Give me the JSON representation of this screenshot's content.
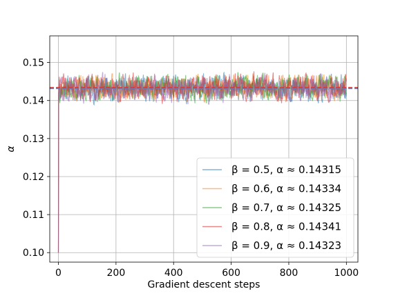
{
  "chart_data": {
    "type": "line",
    "xlabel": "Gradient descent steps",
    "ylabel": "α",
    "xlim": [
      -30,
      1040
    ],
    "ylim": [
      0.0975,
      0.157
    ],
    "x_ticks": [
      0,
      200,
      400,
      600,
      800,
      1000
    ],
    "x_tick_labels": [
      "0",
      "200",
      "400",
      "600",
      "800",
      "1000"
    ],
    "y_ticks": [
      0.1,
      0.11,
      0.12,
      0.13,
      0.14,
      0.15
    ],
    "y_tick_labels": [
      "0.10",
      "0.11",
      "0.12",
      "0.13",
      "0.14",
      "0.15"
    ],
    "grid": true,
    "legend_position": "lower-right",
    "steps": 1000,
    "initial_value": 0.1,
    "noise_amplitude": 0.003,
    "reference_lines": [
      {
        "value": 0.1432,
        "style": "dashed"
      }
    ],
    "series": [
      {
        "name": "β = 0.5, α ≈  0.14315",
        "color": "#1f77b4",
        "mean": 0.14315,
        "seed": 11
      },
      {
        "name": "β = 0.6, α ≈  0.14334",
        "color": "#ff7f0e",
        "mean": 0.14334,
        "seed": 23
      },
      {
        "name": "β = 0.7, α ≈  0.14325",
        "color": "#2ca02c",
        "mean": 0.14325,
        "seed": 37
      },
      {
        "name": "β = 0.8, α ≈  0.14341",
        "color": "#d62728",
        "mean": 0.14341,
        "seed": 41
      },
      {
        "name": "β = 0.9, α ≈  0.14323",
        "color": "#9467bd",
        "mean": 0.14323,
        "seed": 59
      }
    ]
  }
}
